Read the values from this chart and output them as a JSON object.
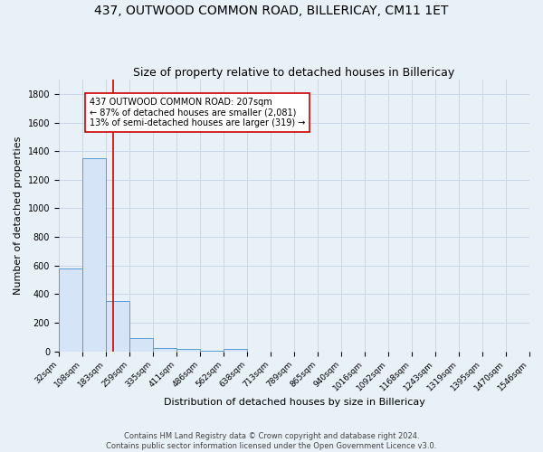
{
  "title": "437, OUTWOOD COMMON ROAD, BILLERICAY, CM11 1ET",
  "subtitle": "Size of property relative to detached houses in Billericay",
  "xlabel": "Distribution of detached houses by size in Billericay",
  "ylabel": "Number of detached properties",
  "bin_edges": [
    32,
    108,
    183,
    259,
    335,
    411,
    486,
    562,
    638,
    713,
    789,
    865,
    940,
    1016,
    1092,
    1168,
    1243,
    1319,
    1395,
    1470,
    1546
  ],
  "bin_labels": [
    "32sqm",
    "108sqm",
    "183sqm",
    "259sqm",
    "335sqm",
    "411sqm",
    "486sqm",
    "562sqm",
    "638sqm",
    "713sqm",
    "789sqm",
    "865sqm",
    "940sqm",
    "1016sqm",
    "1092sqm",
    "1168sqm",
    "1243sqm",
    "1319sqm",
    "1395sqm",
    "1470sqm",
    "1546sqm"
  ],
  "bar_heights": [
    580,
    1350,
    350,
    90,
    25,
    15,
    5,
    15,
    0,
    0,
    0,
    0,
    0,
    0,
    0,
    0,
    0,
    0,
    0,
    0
  ],
  "bar_color": "#d6e4f7",
  "bar_edge_color": "#5b9bd5",
  "property_size": 207,
  "vline_color": "#cc0000",
  "annotation_line1": "437 OUTWOOD COMMON ROAD: 207sqm",
  "annotation_line2": "← 87% of detached houses are smaller (2,081)",
  "annotation_line3": "13% of semi-detached houses are larger (319) →",
  "annotation_box_color": "white",
  "annotation_box_edge_color": "#cc0000",
  "ylim": [
    0,
    1900
  ],
  "yticks": [
    0,
    200,
    400,
    600,
    800,
    1000,
    1200,
    1400,
    1600,
    1800
  ],
  "grid_color": "#c8d8e8",
  "bg_color": "#e8f0f8",
  "footer_line1": "Contains HM Land Registry data © Crown copyright and database right 2024.",
  "footer_line2": "Contains public sector information licensed under the Open Government Licence v3.0.",
  "title_fontsize": 10,
  "subtitle_fontsize": 9,
  "annotation_fontsize": 7,
  "xlabel_fontsize": 8,
  "ylabel_fontsize": 8,
  "tick_fontsize": 6.5,
  "footer_fontsize": 6
}
